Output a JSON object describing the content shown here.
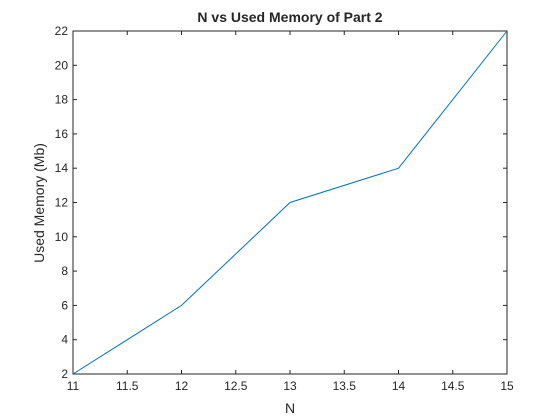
{
  "chart_data": {
    "type": "line",
    "title": "N vs Used Memory  of Part 2",
    "xlabel": "N",
    "ylabel": "Used Memory (Mb)",
    "xlim": [
      11,
      15
    ],
    "ylim": [
      2,
      22
    ],
    "xticks": [
      "11",
      "11.5",
      "12",
      "12.5",
      "13",
      "13.5",
      "14",
      "14.5",
      "15"
    ],
    "yticks": [
      "2",
      "4",
      "6",
      "8",
      "10",
      "12",
      "14",
      "16",
      "18",
      "20",
      "22"
    ],
    "grid": false,
    "series": [
      {
        "color": "#0072BD",
        "x": [
          11,
          12,
          13,
          14,
          15
        ],
        "y": [
          2,
          6,
          12,
          14,
          22
        ]
      }
    ]
  }
}
